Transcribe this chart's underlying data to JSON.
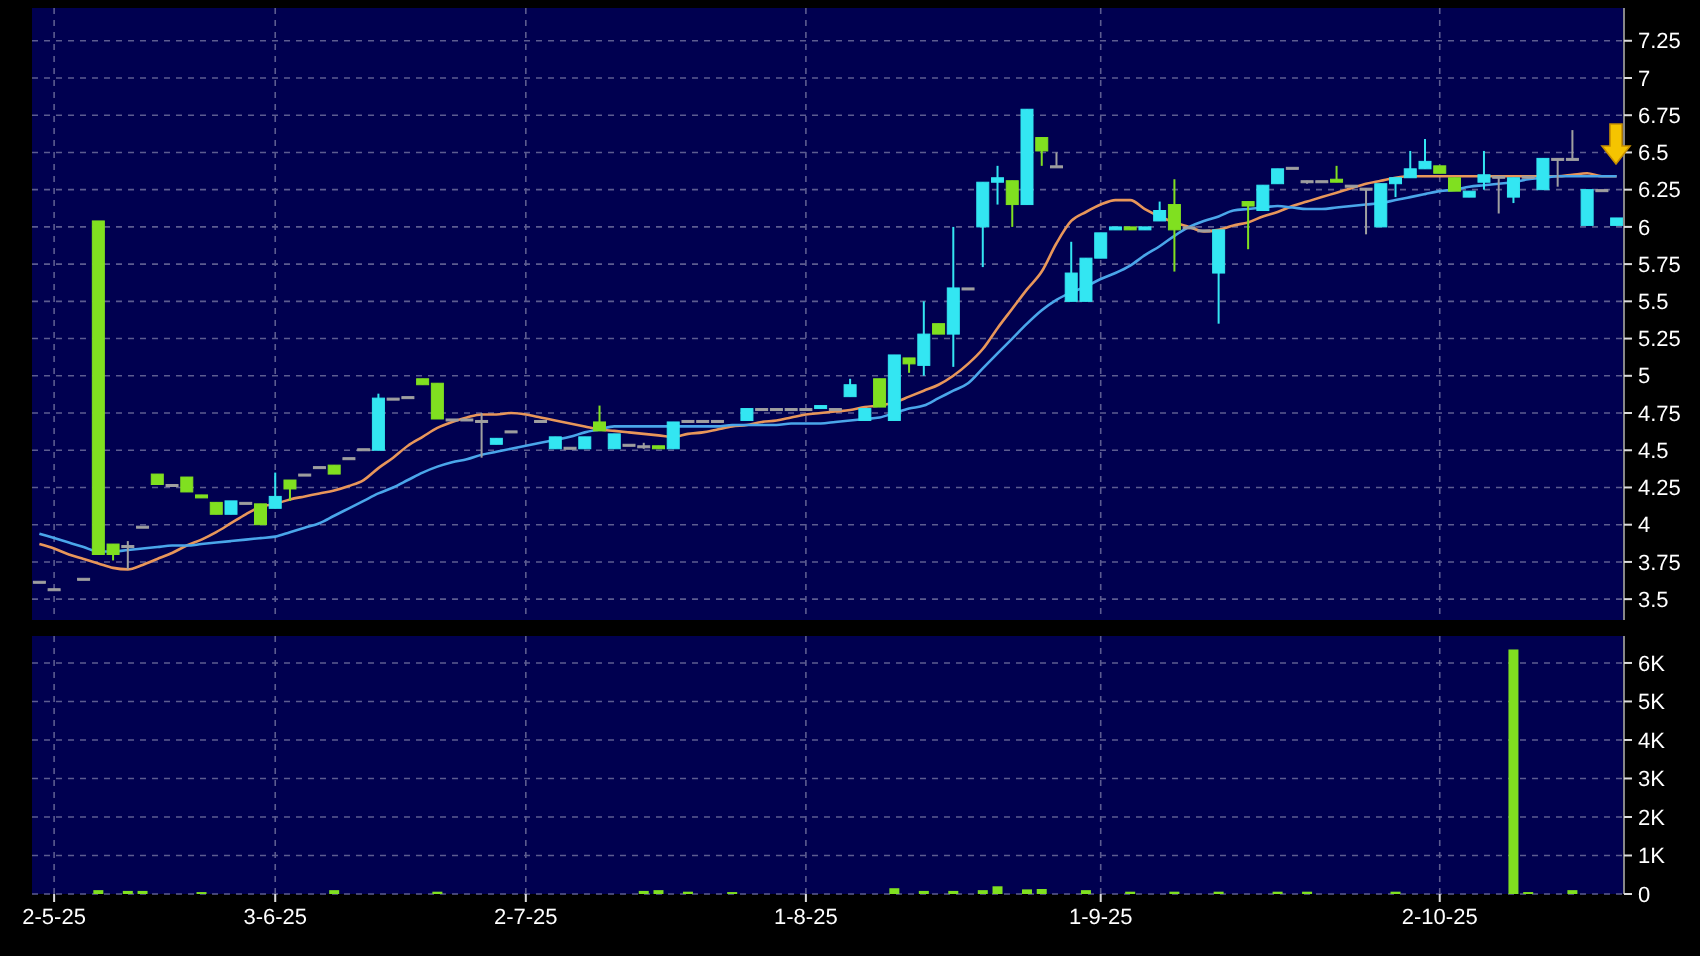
{
  "chart_data": [
    {
      "type": "candlestick",
      "categories": [
        null,
        null,
        null,
        null,
        null,
        null,
        null,
        null,
        null,
        null,
        null,
        null,
        null,
        null,
        null,
        null,
        null,
        null,
        null,
        null,
        null,
        null,
        null,
        null,
        null,
        null,
        null,
        null,
        null,
        null,
        null,
        null,
        null,
        null,
        null,
        null,
        null,
        null,
        null,
        null,
        null,
        null,
        null,
        null,
        null,
        null,
        null,
        null,
        null,
        null,
        null,
        null,
        null,
        null,
        null,
        null,
        null,
        null,
        null,
        null,
        null,
        null,
        null,
        null,
        null,
        null,
        null,
        null,
        null,
        null,
        null,
        null,
        null,
        null,
        null,
        null,
        null,
        null,
        null,
        null,
        null,
        null,
        null,
        null,
        null,
        null,
        null,
        null,
        null,
        null,
        null,
        null,
        null,
        null,
        null,
        null,
        null,
        null,
        null,
        null,
        null,
        null,
        null,
        null,
        null,
        null,
        null,
        null
      ],
      "ohlc": [
        [
          3.62,
          3.62,
          3.62,
          3.62
        ],
        [
          3.57,
          3.57,
          3.57,
          3.57
        ],
        null,
        [
          3.64,
          3.64,
          3.64,
          3.64
        ],
        [
          6.04,
          6.04,
          3.8,
          3.8
        ],
        [
          3.87,
          3.87,
          3.76,
          3.8
        ],
        [
          3.86,
          3.89,
          3.7,
          3.86
        ],
        [
          3.99,
          3.99,
          3.99,
          3.99
        ],
        [
          4.34,
          4.34,
          4.27,
          4.27
        ],
        [
          4.27,
          4.27,
          4.27,
          4.27
        ],
        [
          4.32,
          4.32,
          4.22,
          4.22
        ],
        [
          4.2,
          4.2,
          4.18,
          4.18
        ],
        [
          4.15,
          4.15,
          4.07,
          4.07
        ],
        [
          4.07,
          4.16,
          4.07,
          4.16
        ],
        [
          4.15,
          4.15,
          4.15,
          4.15
        ],
        [
          4.14,
          4.14,
          4.0,
          4.0
        ],
        [
          4.11,
          4.35,
          4.11,
          4.19
        ],
        [
          4.3,
          4.3,
          4.16,
          4.24
        ],
        [
          4.34,
          4.34,
          4.34,
          4.34
        ],
        [
          4.39,
          4.39,
          4.39,
          4.39
        ],
        [
          4.4,
          4.4,
          4.34,
          4.34
        ],
        [
          4.45,
          4.45,
          4.45,
          4.45
        ],
        [
          4.51,
          4.51,
          4.51,
          4.51
        ],
        [
          4.5,
          4.88,
          4.5,
          4.85
        ],
        [
          4.85,
          4.85,
          4.85,
          4.85
        ],
        [
          4.86,
          4.86,
          4.86,
          4.86
        ],
        [
          4.98,
          4.98,
          4.94,
          4.94
        ],
        [
          4.95,
          4.95,
          4.71,
          4.71
        ],
        [
          4.71,
          4.71,
          4.71,
          4.71
        ],
        [
          4.71,
          4.71,
          4.71,
          4.71
        ],
        [
          4.7,
          4.75,
          4.45,
          4.7
        ],
        [
          4.54,
          4.58,
          4.54,
          4.58
        ],
        [
          4.63,
          4.63,
          4.63,
          4.63
        ],
        null,
        [
          4.7,
          4.7,
          4.7,
          4.7
        ],
        [
          4.51,
          4.59,
          4.51,
          4.59
        ],
        [
          4.52,
          4.52,
          4.52,
          4.52
        ],
        [
          4.51,
          4.59,
          4.51,
          4.59
        ],
        [
          4.69,
          4.8,
          4.63,
          4.63
        ],
        [
          4.51,
          4.61,
          4.51,
          4.61
        ],
        [
          4.54,
          4.54,
          4.54,
          4.54
        ],
        [
          4.53,
          4.55,
          4.51,
          4.53
        ],
        [
          4.53,
          4.53,
          4.51,
          4.51
        ],
        [
          4.51,
          4.69,
          4.51,
          4.69
        ],
        [
          4.7,
          4.7,
          4.7,
          4.7
        ],
        [
          4.7,
          4.7,
          4.7,
          4.7
        ],
        [
          4.7,
          4.7,
          4.7,
          4.7
        ],
        null,
        [
          4.7,
          4.78,
          4.7,
          4.78
        ],
        [
          4.78,
          4.78,
          4.78,
          4.78
        ],
        [
          4.78,
          4.78,
          4.78,
          4.78
        ],
        [
          4.78,
          4.78,
          4.78,
          4.78
        ],
        [
          4.78,
          4.78,
          4.78,
          4.78
        ],
        [
          4.78,
          4.8,
          4.78,
          4.8
        ],
        [
          4.78,
          4.78,
          4.78,
          4.78
        ],
        [
          4.86,
          4.98,
          4.86,
          4.94
        ],
        [
          4.7,
          4.78,
          4.7,
          4.78
        ],
        [
          4.98,
          4.98,
          4.79,
          4.79
        ],
        [
          4.7,
          5.14,
          4.7,
          5.14
        ],
        [
          5.12,
          5.12,
          5.02,
          5.08
        ],
        [
          5.07,
          5.5,
          5.0,
          5.28
        ],
        [
          5.35,
          5.35,
          5.28,
          5.28
        ],
        [
          5.28,
          6.0,
          5.06,
          5.59
        ],
        [
          5.59,
          5.59,
          5.59,
          5.59
        ],
        [
          6.0,
          6.3,
          5.73,
          6.3
        ],
        [
          6.3,
          6.41,
          6.15,
          6.33
        ],
        [
          6.31,
          6.31,
          6.0,
          6.15
        ],
        [
          6.15,
          6.79,
          6.15,
          6.79
        ],
        [
          6.6,
          6.6,
          6.41,
          6.51
        ],
        [
          6.41,
          6.5,
          6.41,
          6.41
        ],
        [
          5.5,
          5.9,
          5.5,
          5.69
        ],
        [
          5.5,
          5.79,
          5.5,
          5.79
        ],
        [
          5.79,
          5.96,
          5.79,
          5.96
        ],
        [
          5.98,
          6.0,
          5.98,
          6.0
        ],
        [
          6.0,
          6.0,
          5.98,
          5.98
        ],
        [
          5.98,
          6.0,
          5.98,
          6.0
        ],
        [
          6.04,
          6.17,
          6.04,
          6.11
        ],
        [
          6.15,
          6.32,
          5.7,
          5.98
        ],
        [
          6.0,
          6.0,
          6.0,
          6.0
        ],
        [
          5.98,
          5.98,
          5.98,
          5.98
        ],
        [
          5.69,
          5.98,
          5.35,
          5.98
        ],
        null,
        [
          6.17,
          6.17,
          5.85,
          6.14
        ],
        [
          6.11,
          6.28,
          6.11,
          6.28
        ],
        [
          6.29,
          6.39,
          6.29,
          6.39
        ],
        [
          6.4,
          6.4,
          6.4,
          6.4
        ],
        [
          6.31,
          6.31,
          6.29,
          6.31
        ],
        [
          6.31,
          6.31,
          6.31,
          6.31
        ],
        [
          6.32,
          6.41,
          6.3,
          6.3
        ],
        [
          6.28,
          6.28,
          6.28,
          6.28
        ],
        [
          6.26,
          6.26,
          5.95,
          6.26
        ],
        [
          6.0,
          6.29,
          6.0,
          6.29
        ],
        [
          6.29,
          6.33,
          6.2,
          6.33
        ],
        [
          6.33,
          6.51,
          6.33,
          6.39
        ],
        [
          6.39,
          6.59,
          6.39,
          6.44
        ],
        [
          6.41,
          6.41,
          6.36,
          6.36
        ],
        [
          6.33,
          6.33,
          6.24,
          6.24
        ],
        [
          6.2,
          6.24,
          6.2,
          6.24
        ],
        [
          6.3,
          6.51,
          6.25,
          6.35
        ],
        [
          6.34,
          6.34,
          6.09,
          6.34
        ],
        [
          6.2,
          6.33,
          6.16,
          6.33
        ],
        [
          6.34,
          6.34,
          6.34,
          6.34
        ],
        [
          6.25,
          6.46,
          6.25,
          6.46
        ],
        [
          6.46,
          6.46,
          6.27,
          6.46
        ],
        [
          6.46,
          6.65,
          6.46,
          6.46
        ],
        [
          6.01,
          6.25,
          6.01,
          6.25
        ],
        [
          6.25,
          6.25,
          6.25,
          6.25
        ],
        [
          6.01,
          6.06,
          6.01,
          6.06
        ]
      ],
      "colors": [
        "#a0a0a0",
        "#a0a0a0",
        null,
        "#a0a0a0",
        "#80e020",
        "#80e020",
        "#a0a0a0",
        "#a0a0a0",
        "#80e020",
        "#a0a0a0",
        "#80e020",
        "#80e020",
        "#80e020",
        "#33e6f2",
        "#a0a0a0",
        "#80e020",
        "#33e6f2",
        "#80e020",
        "#a0a0a0",
        "#a0a0a0",
        "#80e020",
        "#a0a0a0",
        "#a0a0a0",
        "#33e6f2",
        "#a0a0a0",
        "#a0a0a0",
        "#80e020",
        "#80e020",
        "#a0a0a0",
        "#a0a0a0",
        "#a0a0a0",
        "#33e6f2",
        "#a0a0a0",
        null,
        "#a0a0a0",
        "#33e6f2",
        "#a0a0a0",
        "#33e6f2",
        "#80e020",
        "#33e6f2",
        "#a0a0a0",
        "#a0a0a0",
        "#80e020",
        "#33e6f2",
        "#a0a0a0",
        "#a0a0a0",
        "#a0a0a0",
        null,
        "#33e6f2",
        "#a0a0a0",
        "#a0a0a0",
        "#a0a0a0",
        "#a0a0a0",
        "#33e6f2",
        "#a0a0a0",
        "#33e6f2",
        "#33e6f2",
        "#80e020",
        "#33e6f2",
        "#80e020",
        "#33e6f2",
        "#80e020",
        "#33e6f2",
        "#a0a0a0",
        "#33e6f2",
        "#33e6f2",
        "#80e020",
        "#33e6f2",
        "#80e020",
        "#a0a0a0",
        "#33e6f2",
        "#33e6f2",
        "#33e6f2",
        "#33e6f2",
        "#80e020",
        "#33e6f2",
        "#33e6f2",
        "#80e020",
        "#a0a0a0",
        "#a0a0a0",
        "#33e6f2",
        null,
        "#80e020",
        "#33e6f2",
        "#33e6f2",
        "#a0a0a0",
        "#a0a0a0",
        "#a0a0a0",
        "#80e020",
        "#a0a0a0",
        "#a0a0a0",
        "#33e6f2",
        "#33e6f2",
        "#33e6f2",
        "#33e6f2",
        "#80e020",
        "#80e020",
        "#33e6f2",
        "#33e6f2",
        "#a0a0a0",
        "#33e6f2",
        "#a0a0a0",
        "#33e6f2",
        "#a0a0a0",
        "#a0a0a0",
        "#33e6f2",
        "#a0a0a0",
        "#33e6f2"
      ],
      "series": [
        {
          "type": "line",
          "color": "#e8965a",
          "values": [
            3.87,
            3.84,
            3.8,
            3.77,
            3.74,
            3.71,
            3.7,
            3.73,
            3.77,
            3.81,
            3.86,
            3.9,
            3.95,
            4.01,
            4.07,
            4.12,
            4.14,
            4.17,
            4.19,
            4.21,
            4.23,
            4.26,
            4.3,
            4.38,
            4.45,
            4.53,
            4.59,
            4.65,
            4.69,
            4.72,
            4.74,
            4.74,
            4.75,
            4.74,
            4.72,
            4.7,
            4.68,
            4.66,
            4.64,
            4.63,
            4.62,
            4.61,
            4.6,
            4.59,
            4.61,
            4.62,
            4.64,
            4.66,
            4.67,
            4.69,
            4.7,
            4.72,
            4.74,
            4.75,
            4.76,
            4.77,
            4.79,
            4.8,
            4.82,
            4.86,
            4.9,
            4.94,
            5.0,
            5.08,
            5.18,
            5.32,
            5.45,
            5.58,
            5.7,
            5.89,
            6.04,
            6.1,
            6.15,
            6.18,
            6.18,
            6.12,
            6.07,
            6.03,
            6.0,
            5.97,
            5.98,
            6.01,
            6.03,
            6.07,
            6.1,
            6.14,
            6.17,
            6.2,
            6.23,
            6.26,
            6.29,
            6.31,
            6.33,
            6.34,
            6.34,
            6.34,
            6.34,
            6.34,
            6.34,
            6.34,
            6.34,
            6.34,
            6.34,
            6.34,
            6.35,
            6.36,
            6.34,
            6.34
          ]
        },
        {
          "type": "line",
          "color": "#4aa6ea",
          "values": [
            3.94,
            3.91,
            3.88,
            3.85,
            3.82,
            3.82,
            3.83,
            3.84,
            3.85,
            3.86,
            3.86,
            3.87,
            3.88,
            3.89,
            3.9,
            3.91,
            3.92,
            3.95,
            3.98,
            4.01,
            4.06,
            4.11,
            4.16,
            4.21,
            4.25,
            4.3,
            4.35,
            4.39,
            4.42,
            4.44,
            4.47,
            4.49,
            4.51,
            4.53,
            4.55,
            4.57,
            4.59,
            4.62,
            4.64,
            4.66,
            4.66,
            4.66,
            4.66,
            4.66,
            4.66,
            4.66,
            4.66,
            4.67,
            4.67,
            4.67,
            4.67,
            4.68,
            4.68,
            4.68,
            4.69,
            4.7,
            4.71,
            4.72,
            4.75,
            4.78,
            4.8,
            4.85,
            4.9,
            4.95,
            5.05,
            5.15,
            5.25,
            5.35,
            5.44,
            5.51,
            5.56,
            5.6,
            5.65,
            5.69,
            5.74,
            5.81,
            5.87,
            5.94,
            6.0,
            6.04,
            6.07,
            6.11,
            6.12,
            6.13,
            6.14,
            6.13,
            6.12,
            6.12,
            6.13,
            6.14,
            6.15,
            6.16,
            6.18,
            6.2,
            6.22,
            6.24,
            6.25,
            6.27,
            6.28,
            6.29,
            6.3,
            6.32,
            6.33,
            6.34,
            6.34,
            6.34,
            6.34,
            6.34
          ]
        }
      ],
      "ylim": [
        3.36,
        7.47
      ],
      "yticks": [
        3.5,
        3.75,
        4,
        4.25,
        4.5,
        4.75,
        5,
        5.25,
        5.5,
        5.75,
        6,
        6.25,
        6.5,
        6.75,
        7,
        7.25
      ],
      "grid": true,
      "tick_labels": "y"
    },
    {
      "type": "bar",
      "categories": [
        null,
        "2-5-25",
        null,
        null,
        null,
        null,
        null,
        null,
        null,
        null,
        null,
        null,
        null,
        null,
        null,
        null,
        "3-6-25",
        null,
        null,
        null,
        null,
        null,
        null,
        null,
        null,
        null,
        null,
        null,
        null,
        null,
        null,
        null,
        null,
        "2-7-25",
        null,
        null,
        null,
        null,
        null,
        null,
        null,
        null,
        null,
        null,
        null,
        null,
        null,
        null,
        null,
        null,
        null,
        null,
        "1-8-25",
        null,
        null,
        null,
        null,
        null,
        null,
        null,
        null,
        null,
        null,
        null,
        null,
        null,
        null,
        null,
        null,
        null,
        null,
        null,
        "1-9-25",
        null,
        null,
        null,
        null,
        null,
        null,
        null,
        null,
        null,
        null,
        null,
        null,
        null,
        null,
        null,
        null,
        null,
        null,
        null,
        null,
        null,
        null,
        "2-10-25",
        null,
        null,
        null,
        null,
        null,
        null,
        null,
        null,
        null,
        null,
        null,
        null
      ],
      "values": [
        null,
        null,
        null,
        null,
        100,
        null,
        80,
        80,
        null,
        null,
        null,
        50,
        null,
        null,
        null,
        null,
        null,
        null,
        null,
        null,
        100,
        null,
        null,
        null,
        null,
        null,
        null,
        60,
        null,
        null,
        null,
        null,
        null,
        null,
        null,
        null,
        null,
        null,
        null,
        null,
        null,
        80,
        100,
        null,
        60,
        null,
        null,
        50,
        null,
        null,
        null,
        null,
        null,
        null,
        null,
        null,
        null,
        null,
        150,
        null,
        80,
        null,
        80,
        null,
        100,
        200,
        null,
        120,
        130,
        null,
        null,
        100,
        null,
        null,
        60,
        null,
        null,
        60,
        null,
        null,
        60,
        null,
        null,
        null,
        60,
        null,
        60,
        null,
        null,
        null,
        null,
        null,
        60,
        null,
        null,
        null,
        null,
        null,
        null,
        null,
        6350,
        50,
        null,
        null,
        100,
        null,
        null,
        null
      ],
      "color": "#80e020",
      "ylim": [
        0,
        6700
      ],
      "yticks": [
        0,
        {
          "value": 1000,
          "label": "1K"
        },
        {
          "value": 2000,
          "label": "2K"
        },
        {
          "value": 3000,
          "label": "3K"
        },
        {
          "value": 4000,
          "label": "4K"
        },
        {
          "value": 5000,
          "label": "5K"
        },
        {
          "value": 6000,
          "label": "6K"
        }
      ],
      "grid": true
    }
  ]
}
